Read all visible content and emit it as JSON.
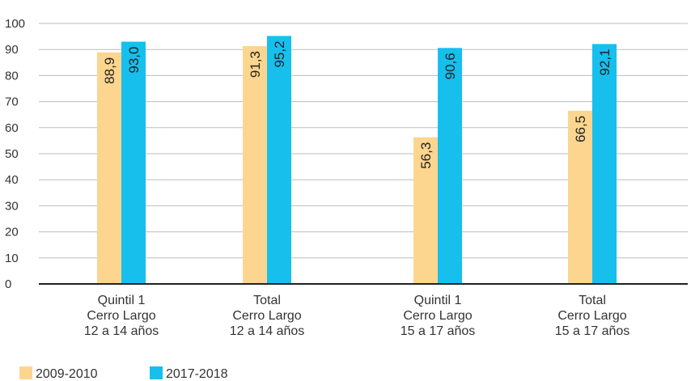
{
  "chart_data": {
    "type": "bar",
    "categories": [
      [
        "Quintil 1",
        "Cerro Largo",
        "12 a 14 años"
      ],
      [
        "Total",
        "Cerro Largo",
        "12 a 14 años"
      ],
      [
        "Quintil 1",
        "Cerro Largo",
        "15 a 17 años"
      ],
      [
        "Total",
        "Cerro Largo",
        "15 a 17 años"
      ]
    ],
    "series": [
      {
        "name": "2009-2010",
        "color": "#fcd58f",
        "values": [
          88.9,
          91.3,
          56.3,
          66.5
        ],
        "labels": [
          "88,9",
          "91,3",
          "56,3",
          "66,5"
        ]
      },
      {
        "name": "2017-2018",
        "color": "#17bfed",
        "values": [
          93.0,
          95.2,
          90.6,
          92.1
        ],
        "labels": [
          "93,0",
          "95,2",
          "90,6",
          "92,1"
        ]
      }
    ],
    "title": "",
    "xlabel": "",
    "ylabel": "",
    "ylim": [
      0,
      100
    ],
    "yticks": [
      0,
      10,
      20,
      30,
      40,
      50,
      60,
      70,
      80,
      90,
      100
    ],
    "grid": true,
    "legend_position": "bottom-left"
  }
}
